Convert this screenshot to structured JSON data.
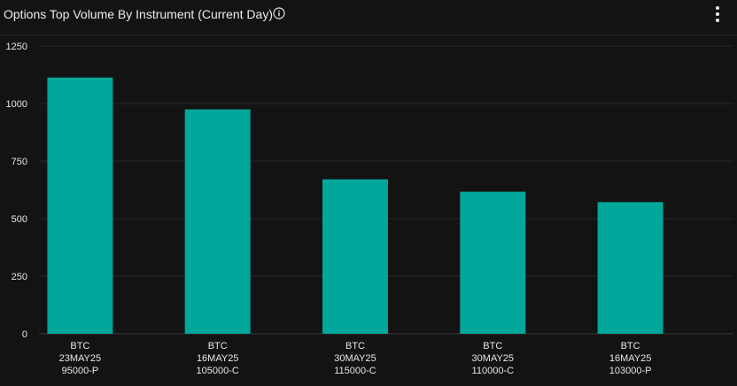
{
  "header": {
    "title": "Options Top Volume By Instrument (Current Day)",
    "info_icon": "info-icon",
    "menu_icon": "kebab-menu-icon"
  },
  "colors": {
    "background": "#131313",
    "bar": "#00A79A",
    "grid": "#2a2a2a",
    "axis_text": "#e6e6e6"
  },
  "chart_data": {
    "type": "bar",
    "title": "Options Top Volume By Instrument (Current Day)",
    "xlabel": "",
    "ylabel": "",
    "categories": [
      [
        "BTC",
        "23MAY25",
        "95000-P"
      ],
      [
        "BTC",
        "16MAY25",
        "105000-C"
      ],
      [
        "BTC",
        "30MAY25",
        "115000-C"
      ],
      [
        "BTC",
        "30MAY25",
        "110000-C"
      ],
      [
        "BTC",
        "16MAY25",
        "103000-P"
      ]
    ],
    "values": [
      1113,
      975,
      671,
      617,
      572
    ],
    "ylim": [
      0,
      1250
    ],
    "yticks": [
      0,
      250,
      500,
      750,
      1000,
      1250
    ],
    "grid": true,
    "legend": "none"
  }
}
